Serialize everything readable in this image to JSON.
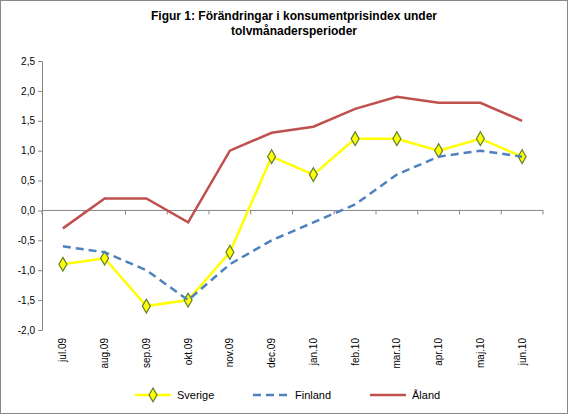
{
  "chart_data": {
    "type": "line",
    "title": [
      "Figur 1: Förändringar i konsumentprisindex  under",
      "tolvmånadersperioder"
    ],
    "categories": [
      "jul.09",
      "aug.09",
      "sep.09",
      "okt.09",
      "nov.09",
      "dec.09",
      "jan.10",
      "feb.10",
      "mar.10",
      "apr.10",
      "maj.10",
      "jun.10"
    ],
    "series": [
      {
        "name": "Sverige",
        "color": "#ffff00",
        "marker": "diamond",
        "line_style": "solid",
        "values": [
          -0.9,
          -0.8,
          -1.6,
          -1.5,
          -0.7,
          0.9,
          0.6,
          1.2,
          1.2,
          1.0,
          1.2,
          0.9
        ]
      },
      {
        "name": "Finland",
        "color": "#4f81bd",
        "line_style": "dashed",
        "values": [
          -0.6,
          -0.7,
          -1.0,
          -1.5,
          -0.9,
          -0.5,
          -0.2,
          0.1,
          0.6,
          0.9,
          1.0,
          0.9
        ]
      },
      {
        "name": "Åland",
        "color": "#c0504d",
        "line_style": "solid",
        "values": [
          -0.3,
          0.2,
          0.2,
          -0.2,
          1.0,
          1.3,
          1.4,
          1.7,
          1.9,
          1.8,
          1.8,
          1.5
        ]
      }
    ],
    "ylim": [
      -2.0,
      2.5
    ],
    "yticks": [
      {
        "value": -2.0,
        "label": "-2,0"
      },
      {
        "value": -1.5,
        "label": "-1,5"
      },
      {
        "value": -1.0,
        "label": "-1,0"
      },
      {
        "value": -0.5,
        "label": "-0,5"
      },
      {
        "value": 0.0,
        "label": "0,0"
      },
      {
        "value": 0.5,
        "label": "0,5"
      },
      {
        "value": 1.0,
        "label": "1,0"
      },
      {
        "value": 1.5,
        "label": "1,5"
      },
      {
        "value": 2.0,
        "label": "2,0"
      },
      {
        "value": 2.5,
        "label": "2,5"
      }
    ],
    "grid": false,
    "legend": "bottom"
  }
}
